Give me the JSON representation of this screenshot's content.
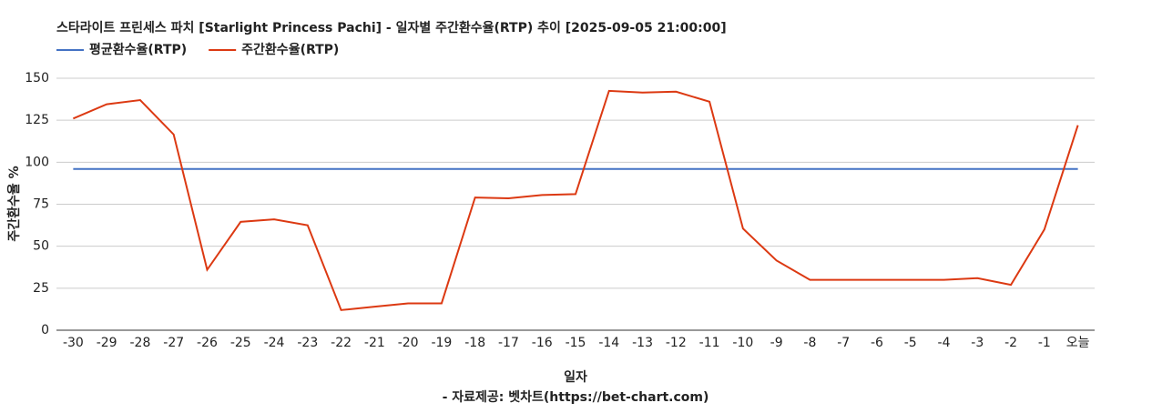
{
  "chart_data": {
    "type": "line",
    "title": "스타라이트 프린세스 파치 [Starlight Princess Pachi] - 일자별 주간환수율(RTP) 추이 [2025-09-05 21:00:00]",
    "x_label": "일자",
    "y_label": "주간환수율 %",
    "footer": "- 자료제공: 벳차트(https://bet-chart.com)",
    "categories": [
      "-30",
      "-29",
      "-28",
      "-27",
      "-26",
      "-25",
      "-24",
      "-23",
      "-22",
      "-21",
      "-20",
      "-19",
      "-18",
      "-17",
      "-16",
      "-15",
      "-14",
      "-13",
      "-12",
      "-11",
      "-10",
      "-9",
      "-8",
      "-7",
      "-6",
      "-5",
      "-4",
      "-3",
      "-2",
      "-1",
      "오늘"
    ],
    "series": [
      {
        "name": "평균환수율(RTP)",
        "color": "#4472c4",
        "values": [
          96,
          96,
          96,
          96,
          96,
          96,
          96,
          96,
          96,
          96,
          96,
          96,
          96,
          96,
          96,
          96,
          96,
          96,
          96,
          96,
          96,
          96,
          96,
          96,
          96,
          96,
          96,
          96,
          96,
          96,
          96
        ]
      },
      {
        "name": "주간환수율(RTP)",
        "color": "#dc3912",
        "values": [
          126,
          134.5,
          137,
          116.5,
          36,
          64.5,
          66,
          62.5,
          12,
          14,
          16,
          16,
          79,
          78.5,
          80.5,
          81,
          142.5,
          141.5,
          142,
          136,
          60.5,
          41.5,
          30,
          30,
          30,
          30,
          30,
          31,
          27,
          60,
          122
        ]
      }
    ],
    "ylim": [
      0,
      150
    ],
    "yticks": [
      0,
      25,
      50,
      75,
      100,
      125,
      150
    ],
    "grid": true,
    "legend": "top"
  }
}
